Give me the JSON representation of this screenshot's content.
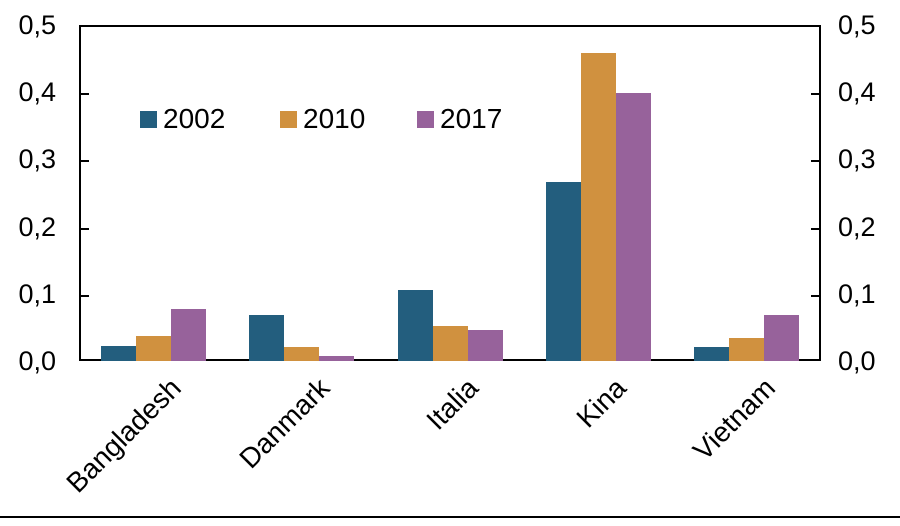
{
  "chart_data": {
    "type": "bar",
    "categories": [
      "Bangladesh",
      "Danmark",
      "Italia",
      "Kina",
      "Vietnam"
    ],
    "series": [
      {
        "name": "2002",
        "color": "#235E7E",
        "values": [
          0.022,
          0.069,
          0.105,
          0.266,
          0.021
        ]
      },
      {
        "name": "2010",
        "color": "#D0913F",
        "values": [
          0.037,
          0.021,
          0.052,
          0.459,
          0.034
        ]
      },
      {
        "name": "2017",
        "color": "#97629B",
        "values": [
          0.078,
          0.008,
          0.046,
          0.399,
          0.069
        ]
      }
    ],
    "title": "",
    "xlabel": "",
    "ylabel": "",
    "ylim": [
      0,
      0.5
    ],
    "ytick_step": 0.1,
    "ytick_labels": [
      "0,0",
      "0,1",
      "0,2",
      "0,3",
      "0,4",
      "0,5"
    ],
    "grid": false,
    "legend_position": "inside-top-left",
    "decimal_separator": ",",
    "frame_color": "#000000",
    "background_color": "#ffffff",
    "text_color": "#000000"
  }
}
